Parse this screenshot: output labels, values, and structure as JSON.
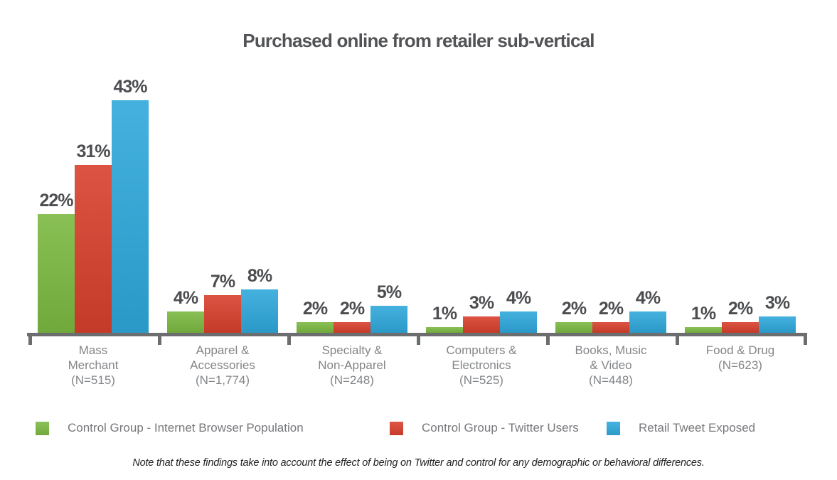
{
  "title": "Purchased online from retailer sub-vertical",
  "footnote": "Note that these findings take into account the effect of being on Twitter and control for any demographic or behavioral differences.",
  "chart_data": {
    "type": "bar",
    "title": "Purchased online from retailer sub-vertical",
    "categories": [
      "Mass Merchant (N=515)",
      "Apparel & Accessories (N=1,774)",
      "Specialty & Non-Apparel (N=248)",
      "Computers & Electronics (N=525)",
      "Books, Music & Video (N=448)",
      "Food & Drug (N=623)"
    ],
    "category_lines": [
      [
        "Mass",
        "Merchant",
        "(N=515)"
      ],
      [
        "Apparel &",
        "Accessories",
        "(N=1,774)"
      ],
      [
        "Specialty &",
        "Non-Apparel",
        "(N=248)"
      ],
      [
        "Computers &",
        "Electronics",
        "(N=525)"
      ],
      [
        "Books, Music",
        "& Video",
        "(N=448)"
      ],
      [
        "Food & Drug",
        "(N=623)"
      ]
    ],
    "series": [
      {
        "name": "Control Group - Internet Browser Population",
        "color": "#7cb942",
        "values": [
          22,
          4,
          2,
          1,
          2,
          1
        ]
      },
      {
        "name": "Control Group - Twitter Users",
        "color": "#d8402d",
        "values": [
          31,
          7,
          2,
          3,
          2,
          2
        ]
      },
      {
        "name": "Retail Tweet Exposed",
        "color": "#2fa8db",
        "values": [
          43,
          8,
          5,
          4,
          4,
          3
        ]
      }
    ],
    "value_suffix": "%",
    "ylim": [
      0,
      45
    ],
    "grid": false,
    "legend_position": "bottom",
    "value_labels": true,
    "axis_color": "#6c6d6f"
  },
  "colors": {
    "title_text": "#525356",
    "value_label_text": "#4c4d50",
    "category_text": "#838588",
    "legend_text": "#77787b",
    "axis": "#6c6d6f",
    "background": "#ffffff"
  }
}
